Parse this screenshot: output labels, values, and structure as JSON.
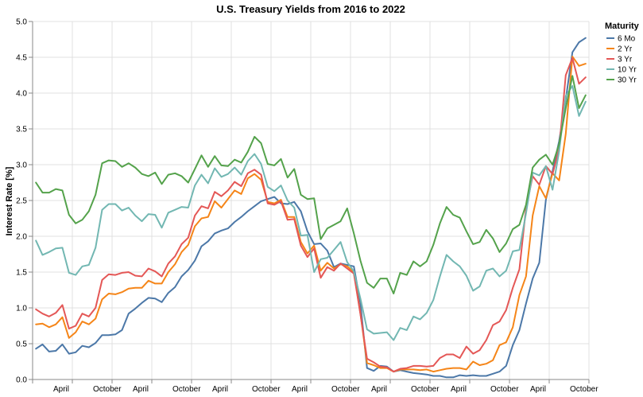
{
  "chart_data": {
    "type": "line",
    "title": "U.S. Treasury Yields from 2016 to 2022",
    "xlabel": "",
    "ylabel": "Interest Rate [%]",
    "ylim": [
      0,
      5
    ],
    "yticks": [
      "0.0",
      "0.5",
      "1.0",
      "1.5",
      "2.0",
      "2.5",
      "3.0",
      "3.5",
      "4.0",
      "4.5",
      "5.0"
    ],
    "x_start": "2016-01",
    "x_end": "2022-12",
    "xtick_labels": [
      "April",
      "October",
      "April",
      "October",
      "April",
      "October",
      "April",
      "October",
      "April",
      "October",
      "April",
      "October",
      "April",
      "October"
    ],
    "grid": true,
    "legend": {
      "title": "Maturity",
      "position": "top-right"
    },
    "series": [
      {
        "name": "6 Mo",
        "color": "#4c78a8",
        "values": [
          0.43,
          0.49,
          0.39,
          0.4,
          0.49,
          0.36,
          0.38,
          0.47,
          0.45,
          0.51,
          0.62,
          0.62,
          0.63,
          0.69,
          0.92,
          0.99,
          1.07,
          1.14,
          1.13,
          1.08,
          1.21,
          1.29,
          1.44,
          1.53,
          1.66,
          1.86,
          1.93,
          2.04,
          2.08,
          2.11,
          2.2,
          2.27,
          2.35,
          2.42,
          2.49,
          2.52,
          2.55,
          2.46,
          2.45,
          2.48,
          2.35,
          2.07,
          1.89,
          1.9,
          1.8,
          1.57,
          1.62,
          1.6,
          1.58,
          1.06,
          0.16,
          0.12,
          0.19,
          0.18,
          0.11,
          0.13,
          0.11,
          0.09,
          0.08,
          0.07,
          0.05,
          0.05,
          0.03,
          0.03,
          0.06,
          0.05,
          0.06,
          0.05,
          0.05,
          0.08,
          0.11,
          0.19,
          0.48,
          0.69,
          1.06,
          1.41,
          1.63,
          2.51,
          2.91,
          3.33,
          3.91,
          4.57,
          4.71,
          4.77
        ]
      },
      {
        "name": "2 Yr",
        "color": "#f58518",
        "values": [
          0.77,
          0.78,
          0.73,
          0.77,
          0.87,
          0.58,
          0.66,
          0.81,
          0.77,
          0.85,
          1.12,
          1.2,
          1.19,
          1.22,
          1.27,
          1.28,
          1.28,
          1.38,
          1.34,
          1.34,
          1.5,
          1.61,
          1.78,
          1.88,
          2.14,
          2.25,
          2.27,
          2.49,
          2.4,
          2.52,
          2.64,
          2.59,
          2.81,
          2.87,
          2.79,
          2.48,
          2.46,
          2.51,
          2.27,
          2.27,
          1.92,
          1.76,
          1.87,
          1.52,
          1.63,
          1.55,
          1.61,
          1.58,
          1.5,
          0.92,
          0.23,
          0.2,
          0.16,
          0.16,
          0.11,
          0.14,
          0.14,
          0.14,
          0.13,
          0.14,
          0.11,
          0.13,
          0.15,
          0.16,
          0.16,
          0.14,
          0.25,
          0.2,
          0.22,
          0.27,
          0.48,
          0.52,
          0.73,
          1.18,
          1.44,
          2.29,
          2.7,
          2.53,
          2.88,
          2.78,
          3.43,
          4.51,
          4.38,
          4.41
        ]
      },
      {
        "name": "3 Yr",
        "color": "#e45756",
        "values": [
          0.98,
          0.92,
          0.88,
          0.93,
          1.04,
          0.71,
          0.75,
          0.92,
          0.88,
          1.0,
          1.39,
          1.47,
          1.46,
          1.49,
          1.5,
          1.45,
          1.44,
          1.55,
          1.51,
          1.44,
          1.62,
          1.72,
          1.89,
          1.98,
          2.29,
          2.42,
          2.39,
          2.62,
          2.56,
          2.64,
          2.76,
          2.7,
          2.88,
          2.93,
          2.86,
          2.46,
          2.44,
          2.49,
          2.23,
          2.24,
          1.87,
          1.71,
          1.83,
          1.42,
          1.57,
          1.52,
          1.62,
          1.55,
          1.48,
          0.91,
          0.29,
          0.24,
          0.18,
          0.17,
          0.11,
          0.15,
          0.16,
          0.19,
          0.19,
          0.18,
          0.19,
          0.3,
          0.35,
          0.35,
          0.3,
          0.46,
          0.36,
          0.41,
          0.55,
          0.76,
          0.81,
          0.97,
          1.28,
          1.54,
          2.39,
          2.84,
          2.72,
          2.98,
          2.87,
          3.22,
          4.25,
          4.49,
          4.13,
          4.22
        ]
      },
      {
        "name": "10 Yr",
        "color": "#72b7b2",
        "values": [
          1.94,
          1.74,
          1.78,
          1.83,
          1.84,
          1.49,
          1.46,
          1.58,
          1.6,
          1.84,
          2.37,
          2.45,
          2.45,
          2.36,
          2.4,
          2.29,
          2.21,
          2.31,
          2.3,
          2.12,
          2.33,
          2.37,
          2.41,
          2.4,
          2.71,
          2.86,
          2.74,
          2.95,
          2.83,
          2.87,
          2.96,
          2.86,
          3.05,
          3.15,
          3.01,
          2.69,
          2.63,
          2.71,
          2.5,
          2.4,
          2.01,
          2.02,
          1.5,
          1.68,
          1.7,
          1.81,
          1.92,
          1.64,
          1.51,
          1.13,
          0.7,
          0.64,
          0.65,
          0.66,
          0.55,
          0.72,
          0.69,
          0.88,
          0.84,
          0.93,
          1.11,
          1.44,
          1.74,
          1.65,
          1.58,
          1.45,
          1.24,
          1.3,
          1.52,
          1.55,
          1.44,
          1.52,
          1.79,
          1.81,
          2.32,
          2.89,
          2.85,
          2.98,
          2.65,
          3.19,
          3.96,
          4.1,
          3.68,
          3.88
        ]
      },
      {
        "name": "30 Yr",
        "color": "#54a24b",
        "values": [
          2.75,
          2.61,
          2.61,
          2.66,
          2.64,
          2.3,
          2.18,
          2.23,
          2.35,
          2.58,
          3.02,
          3.06,
          3.05,
          2.97,
          3.02,
          2.96,
          2.87,
          2.84,
          2.89,
          2.73,
          2.86,
          2.88,
          2.84,
          2.75,
          2.94,
          3.13,
          2.97,
          3.12,
          2.99,
          2.98,
          3.07,
          3.03,
          3.18,
          3.39,
          3.3,
          3.01,
          2.99,
          3.08,
          2.82,
          2.94,
          2.58,
          2.52,
          2.53,
          1.96,
          2.11,
          2.16,
          2.21,
          2.39,
          2.04,
          1.66,
          1.35,
          1.28,
          1.41,
          1.41,
          1.2,
          1.49,
          1.46,
          1.65,
          1.58,
          1.65,
          1.88,
          2.18,
          2.41,
          2.3,
          2.26,
          2.07,
          1.89,
          1.92,
          2.09,
          1.97,
          1.78,
          1.9,
          2.1,
          2.16,
          2.44,
          2.96,
          3.07,
          3.14,
          3.0,
          3.29,
          3.79,
          4.24,
          3.79,
          3.97
        ]
      }
    ]
  }
}
